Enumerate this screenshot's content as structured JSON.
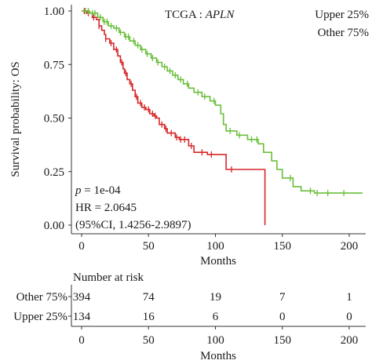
{
  "chart_data": {
    "type": "line",
    "subtype": "kaplan-meier",
    "title": "TCGA : ",
    "title_gene": "APLN",
    "ylabel": "Survival probability: OS",
    "xlabel": "Months",
    "xlim": [
      0,
      210
    ],
    "ylim": [
      0,
      1
    ],
    "xticks": [
      "0",
      "50",
      "100",
      "150",
      "200"
    ],
    "yticks": [
      "0.00",
      "0.25",
      "0.50",
      "0.75",
      "1.00"
    ],
    "grid": false,
    "legend": {
      "position": "top-right",
      "entries": [
        "Upper 25%",
        "Other 75%"
      ]
    },
    "annotations": {
      "p_label": "p",
      "p_value": " = 1e-04",
      "hr": "HR = 2.0645",
      "ci": "(95%CI, 1.4256-2.9897)"
    },
    "series": [
      {
        "name": "Upper 25%",
        "color": "#d62728",
        "steps": [
          [
            0,
            1.0
          ],
          [
            4,
            0.99
          ],
          [
            8,
            0.97
          ],
          [
            11,
            0.96
          ],
          [
            13,
            0.93
          ],
          [
            15,
            0.91
          ],
          [
            17,
            0.89
          ],
          [
            18,
            0.87
          ],
          [
            21,
            0.85
          ],
          [
            24,
            0.82
          ],
          [
            27,
            0.79
          ],
          [
            29,
            0.76
          ],
          [
            31,
            0.73
          ],
          [
            32,
            0.71
          ],
          [
            34,
            0.68
          ],
          [
            36,
            0.66
          ],
          [
            38,
            0.63
          ],
          [
            40,
            0.6
          ],
          [
            42,
            0.57
          ],
          [
            45,
            0.55
          ],
          [
            48,
            0.54
          ],
          [
            51,
            0.52
          ],
          [
            54,
            0.51
          ],
          [
            56,
            0.5
          ],
          [
            58,
            0.47
          ],
          [
            62,
            0.45
          ],
          [
            64,
            0.43
          ],
          [
            70,
            0.41
          ],
          [
            73,
            0.4
          ],
          [
            80,
            0.37
          ],
          [
            84,
            0.34
          ],
          [
            94,
            0.33
          ],
          [
            105,
            0.33
          ],
          [
            108,
            0.26
          ],
          [
            120,
            0.26
          ],
          [
            124,
            0.26
          ],
          [
            137,
            0.26
          ],
          [
            137,
            0.0
          ]
        ],
        "censor_x": [
          2,
          5,
          9,
          13,
          18,
          22,
          26,
          30,
          33,
          37,
          41,
          44,
          47,
          50,
          53,
          55,
          60,
          63,
          67,
          71,
          74,
          77,
          82,
          90,
          97,
          112
        ]
      },
      {
        "name": "Other 75%",
        "color": "#6abf3a",
        "steps": [
          [
            0,
            1.0
          ],
          [
            6,
            0.99
          ],
          [
            12,
            0.97
          ],
          [
            16,
            0.95
          ],
          [
            20,
            0.93
          ],
          [
            24,
            0.92
          ],
          [
            28,
            0.9
          ],
          [
            32,
            0.88
          ],
          [
            36,
            0.86
          ],
          [
            40,
            0.84
          ],
          [
            44,
            0.82
          ],
          [
            48,
            0.8
          ],
          [
            52,
            0.78
          ],
          [
            56,
            0.76
          ],
          [
            60,
            0.74
          ],
          [
            64,
            0.72
          ],
          [
            68,
            0.7
          ],
          [
            72,
            0.68
          ],
          [
            76,
            0.66
          ],
          [
            80,
            0.64
          ],
          [
            84,
            0.62
          ],
          [
            90,
            0.6
          ],
          [
            96,
            0.58
          ],
          [
            100,
            0.56
          ],
          [
            104,
            0.52
          ],
          [
            106,
            0.47
          ],
          [
            108,
            0.44
          ],
          [
            116,
            0.42
          ],
          [
            124,
            0.4
          ],
          [
            132,
            0.38
          ],
          [
            136,
            0.34
          ],
          [
            142,
            0.3
          ],
          [
            146,
            0.26
          ],
          [
            150,
            0.22
          ],
          [
            158,
            0.18
          ],
          [
            164,
            0.16
          ],
          [
            174,
            0.15
          ],
          [
            210,
            0.15
          ]
        ],
        "censor_x": [
          3,
          5,
          8,
          10,
          14,
          17,
          19,
          22,
          26,
          29,
          33,
          35,
          39,
          42,
          45,
          49,
          53,
          57,
          62,
          66,
          70,
          74,
          79,
          87,
          92,
          99,
          111,
          118,
          127,
          131,
          156,
          171,
          176,
          184,
          196
        ]
      }
    ],
    "risk_table": {
      "title": "Number at risk",
      "x": [
        0,
        50,
        100,
        150,
        200
      ],
      "rows": [
        {
          "label": "Other 75%",
          "values": [
            "394",
            "74",
            "19",
            "7",
            "1"
          ]
        },
        {
          "label": "Upper 25%",
          "values": [
            "134",
            "16",
            "6",
            "0",
            "0"
          ]
        }
      ],
      "xticks": [
        "0",
        "50",
        "100",
        "150",
        "200"
      ],
      "xlabel": "Months"
    }
  }
}
